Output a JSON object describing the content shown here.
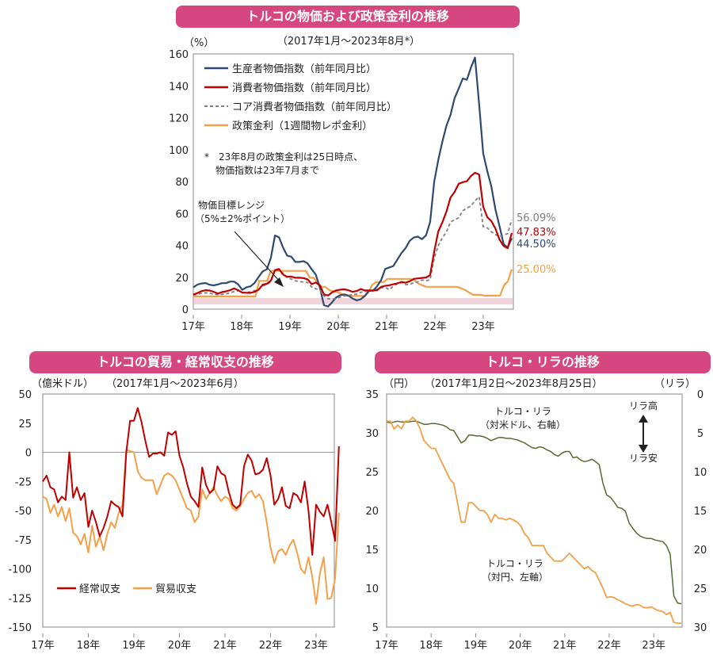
{
  "chart1": {
    "title": "トルコの物価および政策金利の推移",
    "period": "（2017年1月～2023年8月*）",
    "unit": "（%）",
    "yticks": [
      "160",
      "140",
      "120",
      "100",
      "80",
      "60",
      "40",
      "20",
      "0"
    ],
    "xticks": [
      "17年",
      "18年",
      "19年",
      "20年",
      "21年",
      "22年",
      "23年"
    ],
    "legend": [
      "生産者物価指数（前年同月比）",
      "消費者物価指数（前年同月比）",
      "コア消費者物価指数（前年同月比）",
      "政策金利（1週間物レポ金利）"
    ],
    "note1": "*　23年8月の政策金利は25日時点、",
    "note2": "物価指数は23年7月まで",
    "range_label1": "物価目標レンジ",
    "range_label2": "（5%±2%ポイント）",
    "end_labels": [
      "56.09%",
      "47.83%",
      "44.50%",
      "25.00%"
    ]
  },
  "chart2": {
    "title": "トルコの貿易・経常収支の推移",
    "unit": "（億米ドル）",
    "period": "（2017年1月～2023年6月）",
    "yticks": [
      "50",
      "25",
      "0",
      "-25",
      "-50",
      "-75",
      "-100",
      "-125",
      "-150"
    ],
    "xticks": [
      "17年",
      "18年",
      "19年",
      "20年",
      "21年",
      "22年",
      "23年"
    ],
    "legend": [
      "経常収支",
      "貿易収支"
    ]
  },
  "chart3": {
    "title": "トルコ・リラの推移",
    "unit_left": "（円）",
    "period": "（2017年1月2日～2023年8月25日）",
    "unit_right": "（リラ）",
    "yticks_left": [
      "35",
      "30",
      "25",
      "20",
      "15",
      "10",
      "5"
    ],
    "yticks_right": [
      "0",
      "5",
      "10",
      "15",
      "20",
      "25",
      "30"
    ],
    "xticks": [
      "17年",
      "18年",
      "19年",
      "20年",
      "21年",
      "22年",
      "23年"
    ],
    "label_usd1": "トルコ・リラ",
    "label_usd2": "（対米ドル、右軸）",
    "label_jpy1": "トルコ・リラ",
    "label_jpy2": "（対円、左軸）",
    "arrow_top": "リラ高",
    "arrow_bottom": "リラ安"
  },
  "colors": {
    "title_bg": "#d6477f",
    "ppi": "#2e4a72",
    "cpi": "#c00000",
    "core": "#7f7f7f",
    "policy": "#f4a048",
    "current_account": "#c00000",
    "trade": "#f4a048",
    "lira_usd": "#556b2f",
    "lira_jpy": "#f4a048",
    "target_band": "#e6b8c4"
  },
  "chart_data": [
    {
      "type": "line",
      "title": "トルコの物価および政策金利の推移",
      "ylabel": "（%）",
      "ylim": [
        0,
        160
      ],
      "x_start": "2017-01",
      "grid": false,
      "legend_position": "top-left",
      "series": [
        {
          "name": "生産者物価指数（前年同月比）",
          "values": [
            13.7,
            15.4,
            16.1,
            16.4,
            15.3,
            14.9,
            15.5,
            16.3,
            16.3,
            17.3,
            17.3,
            15.5,
            12.1,
            13.7,
            14.3,
            16.4,
            20.2,
            23.7,
            25.0,
            32.1,
            46.2,
            45.0,
            38.5,
            33.6,
            32.9,
            29.6,
            29.6,
            30.1,
            28.7,
            25.0,
            21.7,
            13.5,
            2.5,
            1.7,
            4.3,
            7.4,
            8.8,
            9.3,
            8.5,
            6.7,
            5.5,
            6.2,
            8.3,
            11.5,
            11.5,
            14.3,
            18.2,
            25.2,
            26.2,
            27.1,
            31.2,
            35.2,
            38.3,
            42.9,
            44.9,
            45.5,
            43.9,
            46.3,
            54.6,
            79.9,
            93.5,
            105.0,
            115.0,
            121.8,
            132.2,
            138.3,
            144.6,
            143.8,
            151.5,
            157.7,
            128.5,
            97.7,
            86.5,
            76.9,
            62.4,
            52.1,
            40.8,
            38.6,
            44.5
          ]
        },
        {
          "name": "消費者物価指数（前年同月比）",
          "values": [
            9.2,
            10.1,
            11.3,
            11.9,
            11.7,
            10.9,
            9.8,
            10.7,
            11.2,
            11.9,
            13.0,
            11.9,
            10.4,
            10.3,
            10.2,
            10.9,
            12.2,
            15.4,
            15.9,
            17.9,
            24.5,
            25.2,
            21.6,
            20.3,
            20.4,
            19.7,
            19.7,
            19.5,
            18.7,
            15.7,
            16.7,
            15.0,
            9.3,
            8.6,
            10.6,
            11.8,
            12.2,
            12.4,
            11.9,
            10.9,
            11.4,
            12.6,
            11.8,
            11.8,
            11.8,
            11.9,
            14.0,
            14.6,
            15.0,
            15.6,
            16.2,
            17.1,
            16.6,
            17.5,
            19.0,
            19.3,
            19.6,
            19.9,
            21.3,
            36.1,
            48.7,
            54.4,
            61.1,
            70.0,
            73.5,
            78.6,
            79.6,
            80.2,
            83.5,
            85.5,
            84.4,
            64.3,
            57.7,
            55.2,
            50.5,
            43.7,
            39.6,
            38.2,
            47.8
          ]
        },
        {
          "name": "コア消費者物価指数（前年同月比）",
          "values": [
            8.9,
            9.3,
            10.0,
            10.3,
            10.0,
            9.4,
            9.1,
            9.3,
            9.7,
            10.2,
            11.0,
            11.6,
            10.5,
            10.6,
            10.8,
            11.6,
            12.5,
            14.6,
            15.3,
            17.2,
            24.1,
            24.3,
            22.5,
            19.8,
            18.9,
            17.8,
            17.3,
            17.0,
            16.7,
            13.9,
            12.8,
            11.9,
            8.4,
            6.6,
            6.3,
            6.7,
            7.6,
            8.3,
            8.5,
            9.3,
            9.4,
            10.6,
            11.1,
            11.7,
            11.2,
            12.4,
            13.4,
            13.7,
            12.2,
            14.4,
            16.0,
            16.7,
            15.4,
            15.5,
            16.6,
            17.1,
            18.3,
            17.8,
            18.5,
            31.9,
            39.8,
            44.7,
            48.4,
            54.6,
            56.1,
            57.3,
            61.7,
            63.4,
            64.7,
            68.0,
            70.5,
            51.9,
            51.0,
            48.5,
            46.8,
            45.4,
            46.6,
            47.3,
            56.1
          ]
        },
        {
          "name": "政策金利（1週間物レポ金利）",
          "values": [
            8.0,
            8.0,
            8.0,
            8.0,
            8.0,
            8.0,
            8.0,
            8.0,
            8.0,
            8.0,
            8.0,
            8.0,
            8.0,
            8.0,
            8.0,
            8.0,
            8.0,
            17.75,
            17.75,
            17.75,
            24.0,
            24.0,
            24.0,
            24.0,
            24.0,
            24.0,
            24.0,
            24.0,
            24.0,
            24.0,
            19.75,
            19.75,
            16.5,
            14.0,
            14.0,
            12.0,
            11.25,
            10.75,
            9.75,
            8.75,
            8.25,
            8.25,
            8.25,
            8.25,
            8.25,
            10.25,
            15.0,
            17.0,
            17.0,
            17.0,
            19.0,
            19.0,
            19.0,
            19.0,
            19.0,
            19.0,
            19.0,
            18.0,
            16.0,
            15.0,
            14.0,
            14.0,
            14.0,
            14.0,
            14.0,
            14.0,
            14.0,
            14.0,
            14.0,
            13.0,
            12.0,
            10.5,
            9.0,
            9.0,
            9.0,
            8.5,
            8.5,
            8.5,
            8.5,
            8.5,
            15.0,
            17.5,
            25.0
          ]
        }
      ],
      "target_range": [
        3,
        7
      ]
    },
    {
      "type": "line",
      "title": "トルコの貿易・経常収支の推移",
      "ylabel": "（億米ドル）",
      "ylim": [
        -150,
        50
      ],
      "x_start": "2017-01",
      "grid": false,
      "legend_position": "bottom-left",
      "series": [
        {
          "name": "経常収支",
          "values": [
            -25,
            -20,
            -30,
            -32,
            -43,
            -38,
            -41,
            0,
            -39,
            -30,
            -41,
            -35,
            -64,
            -50,
            -60,
            -72,
            -65,
            -55,
            -42,
            -45,
            -47,
            -55,
            0,
            27,
            27,
            38,
            26,
            10,
            -4,
            -1,
            -1,
            0,
            -3,
            17,
            15,
            18,
            -3,
            -13,
            -27,
            -38,
            -42,
            -47,
            -13,
            -28,
            -35,
            -32,
            -12,
            -18,
            -20,
            -34,
            -45,
            -48,
            -45,
            -12,
            -2,
            -7,
            -19,
            -18,
            -15,
            -5,
            -20,
            -45,
            -40,
            -30,
            -46,
            -48,
            -35,
            -37,
            -43,
            -25,
            -50,
            -88,
            -45,
            -51,
            -55,
            -45,
            -60,
            -76,
            5
          ]
        },
        {
          "name": "貿易収支",
          "values": [
            -38,
            -40,
            -52,
            -45,
            -55,
            -47,
            -59,
            -48,
            -69,
            -72,
            -79,
            -70,
            -86,
            -63,
            -81,
            -72,
            -84,
            -70,
            -60,
            -65,
            -52,
            -45,
            2,
            1,
            0,
            -16,
            -22,
            -24,
            -24,
            -24,
            -36,
            -28,
            -20,
            -18,
            -20,
            -24,
            -32,
            -40,
            -48,
            -50,
            -60,
            -55,
            -32,
            -40,
            -35,
            -30,
            -37,
            -42,
            -38,
            -40,
            -48,
            -50,
            -46,
            -40,
            -35,
            -33,
            -39,
            -36,
            -42,
            -60,
            -82,
            -95,
            -85,
            -83,
            -88,
            -80,
            -75,
            -86,
            -100,
            -104,
            -90,
            -107,
            -130,
            -104,
            -90,
            -126,
            -125,
            -108,
            -52
          ]
        }
      ]
    },
    {
      "type": "line",
      "title": "トルコ・リラの推移",
      "ylabel": "（円）",
      "ylim": [
        5,
        35
      ],
      "y2label": "（リラ）",
      "y2lim": [
        0,
        30
      ],
      "y2_inverted": true,
      "x_start": "2017-01",
      "grid": false,
      "series": [
        {
          "name": "トルコ・リラ（対米ドル、右軸）",
          "axis": "right",
          "values": [
            3.6,
            3.7,
            3.6,
            3.5,
            3.6,
            3.6,
            3.6,
            3.5,
            3.5,
            3.7,
            3.9,
            3.9,
            3.8,
            3.8,
            3.9,
            4.0,
            4.2,
            4.6,
            4.7,
            5.5,
            6.3,
            6.0,
            5.3,
            5.3,
            5.4,
            5.4,
            5.5,
            5.7,
            6.0,
            5.8,
            5.6,
            5.6,
            5.7,
            5.7,
            5.8,
            5.9,
            6.1,
            6.3,
            6.6,
            6.9,
            7.0,
            6.8,
            6.9,
            7.2,
            7.4,
            7.8,
            8.0,
            7.6,
            7.4,
            7.4,
            8.2,
            8.1,
            8.5,
            8.7,
            8.6,
            8.4,
            8.7,
            9.1,
            11.5,
            13.0,
            13.3,
            13.9,
            14.6,
            14.7,
            15.1,
            16.6,
            17.3,
            17.9,
            18.3,
            18.5,
            18.6,
            18.6,
            18.8,
            18.9,
            19.0,
            19.5,
            20.6,
            26.0,
            26.9,
            27.0
          ]
        },
        {
          "name": "トルコ・リラ（対円、左軸）",
          "axis": "left",
          "values": [
            31.5,
            31.5,
            30.5,
            31.0,
            30.5,
            31.5,
            31.5,
            32.0,
            31.5,
            30.5,
            29.0,
            28.5,
            28.0,
            28.0,
            27.0,
            26.0,
            25.0,
            24.0,
            23.5,
            21.0,
            18.5,
            18.5,
            21.0,
            21.0,
            20.5,
            20.0,
            20.0,
            19.5,
            18.5,
            19.5,
            19.0,
            19.0,
            18.8,
            19.0,
            18.8,
            18.5,
            18.0,
            17.0,
            16.5,
            15.5,
            15.5,
            15.5,
            15.5,
            14.5,
            14.0,
            13.5,
            13.5,
            13.5,
            14.0,
            14.5,
            14.0,
            13.5,
            13.0,
            12.5,
            12.8,
            12.3,
            12.0,
            11.0,
            10.0,
            8.8,
            8.9,
            8.8,
            8.5,
            8.3,
            8.0,
            7.8,
            7.7,
            7.9,
            7.8,
            7.5,
            7.5,
            7.6,
            7.3,
            7.1,
            7.0,
            6.6,
            6.9,
            5.6,
            5.5,
            5.5
          ]
        }
      ]
    }
  ]
}
